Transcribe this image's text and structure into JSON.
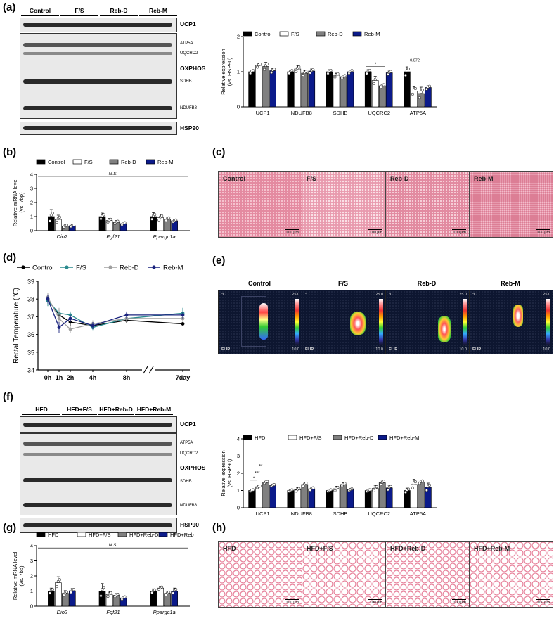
{
  "panel_labels": {
    "a": "(a)",
    "b": "(b)",
    "c": "(c)",
    "d": "(d)",
    "e": "(e)",
    "f": "(f)",
    "g": "(g)",
    "h": "(h)"
  },
  "blot_a": {
    "groups": [
      "Control",
      "F/S",
      "Reb-D",
      "Reb-M"
    ],
    "rows": {
      "ucp1": "UCP1",
      "oxphos": "OXPHOS",
      "hsp90": "HSP90"
    },
    "bands": {
      "atp5a": "ATP5A",
      "uqcrc2": "UQCRC2",
      "sdhb": "SDHB",
      "ndufb8": "NDUFB8"
    }
  },
  "blot_f": {
    "groups": [
      "HFD",
      "HFD+F/S",
      "HFD+Reb-D",
      "HFD+Reb-M"
    ],
    "rows": {
      "ucp1": "UCP1",
      "oxphos": "OXPHOS",
      "hsp90": "HSP90"
    },
    "bands": {
      "atp5a": "ATP5A",
      "uqcrc2": "UQCRC2",
      "sdhb": "SDHB",
      "ndufb8": "NDUFB8"
    }
  },
  "histo_c": {
    "labels": [
      "Control",
      "F/S",
      "Reb-D",
      "Reb-M"
    ],
    "scale": "100 μm"
  },
  "histo_h": {
    "labels": [
      "HFD",
      "HFD+F/S",
      "HFD+Reb-D",
      "HFD+Reb-M"
    ],
    "scale": "100 μm"
  },
  "thermal_e": {
    "labels": [
      "Control",
      "F/S",
      "Reb-D",
      "Reb-M"
    ],
    "unit": "°C",
    "max": "25.0",
    "min": "10.0",
    "brand": "FLIR"
  },
  "chart_data": [
    {
      "id": "a_bar",
      "type": "bar",
      "title": "",
      "ylabel": "Relative expression\n(vs. HSP90)",
      "ylim": [
        0,
        2
      ],
      "yticks": [
        "0",
        "1",
        "2"
      ],
      "categories": [
        "UCP1",
        "NDUFB8",
        "SDHB",
        "UQCRC2",
        "ATP5A"
      ],
      "series": [
        {
          "name": "Control",
          "color": "#000000",
          "values": [
            1.0,
            1.0,
            1.0,
            1.0,
            1.0
          ],
          "errors": [
            0.05,
            0.05,
            0.06,
            0.06,
            0.14
          ]
        },
        {
          "name": "F/S",
          "color": "#ffffff",
          "values": [
            1.18,
            1.08,
            0.9,
            0.75,
            0.45
          ],
          "errors": [
            0.06,
            0.1,
            0.06,
            0.12,
            0.12
          ]
        },
        {
          "name": "Reb-D",
          "color": "#808080",
          "values": [
            1.15,
            0.96,
            0.86,
            0.6,
            0.38
          ],
          "errors": [
            0.12,
            0.08,
            0.04,
            0.04,
            0.18
          ]
        },
        {
          "name": "Reb-M",
          "color": "#0b1a8a",
          "values": [
            1.03,
            1.02,
            1.0,
            0.97,
            0.55
          ],
          "errors": [
            0.06,
            0.06,
            0.05,
            0.05,
            0.05
          ]
        }
      ],
      "annotations": [
        "*",
        "0.072"
      ]
    },
    {
      "id": "b_bar",
      "type": "bar",
      "title": "",
      "ylabel": "Relative mRNA level\n(vs. 7bp)",
      "ylim": [
        0,
        4
      ],
      "yticks": [
        "0",
        "1",
        "2",
        "3",
        "4"
      ],
      "categories": [
        "Dio2",
        "Fgf21",
        "Ppargc1a"
      ],
      "series": [
        {
          "name": "Control",
          "color": "#000000",
          "values": [
            1.0,
            1.0,
            1.0
          ],
          "errors": [
            0.5,
            0.25,
            0.28
          ]
        },
        {
          "name": "F/S",
          "color": "#ffffff",
          "values": [
            0.8,
            0.72,
            0.92
          ],
          "errors": [
            0.3,
            0.15,
            0.25
          ]
        },
        {
          "name": "Reb-D",
          "color": "#808080",
          "values": [
            0.33,
            0.6,
            0.83
          ],
          "errors": [
            0.08,
            0.12,
            0.15
          ]
        },
        {
          "name": "Reb-M",
          "color": "#0b1a8a",
          "values": [
            0.35,
            0.5,
            0.7
          ],
          "errors": [
            0.08,
            0.12,
            0.1
          ]
        }
      ],
      "annotations": [
        "N.S."
      ]
    },
    {
      "id": "d_line",
      "type": "line",
      "title": "",
      "ylabel": "Rectal Temperature (℃)",
      "ylim": [
        34,
        39
      ],
      "yticks": [
        "34",
        "35",
        "36",
        "37",
        "38",
        "39"
      ],
      "xticks": [
        "0h",
        "1h",
        "2h",
        "4h",
        "8h",
        "7day"
      ],
      "series": [
        {
          "name": "Control",
          "color": "#000000",
          "values": [
            38.0,
            37.1,
            36.7,
            36.5,
            36.8,
            36.6
          ],
          "errors": [
            0.2,
            0.2,
            0.2,
            0.15,
            0.15,
            0.1
          ]
        },
        {
          "name": "F/S",
          "color": "#2b8a8e",
          "values": [
            37.9,
            37.2,
            37.1,
            36.4,
            36.9,
            37.2
          ],
          "errors": [
            0.3,
            0.2,
            0.2,
            0.15,
            0.15,
            0.3
          ]
        },
        {
          "name": "Reb-D",
          "color": "#a0a0a0",
          "values": [
            38.1,
            36.9,
            36.3,
            36.6,
            36.9,
            36.9
          ],
          "errors": [
            0.25,
            0.6,
            0.2,
            0.2,
            0.2,
            0.2
          ]
        },
        {
          "name": "Reb-M",
          "color": "#1a237e",
          "values": [
            38.0,
            36.4,
            36.9,
            36.5,
            37.1,
            37.1
          ],
          "errors": [
            0.25,
            0.3,
            0.2,
            0.2,
            0.2,
            0.2
          ]
        }
      ]
    },
    {
      "id": "f_bar",
      "type": "bar",
      "title": "",
      "ylabel": "Relative expression\n(vs. HSP90)",
      "ylim": [
        0,
        4
      ],
      "yticks": [
        "0",
        "1",
        "2",
        "3",
        "4"
      ],
      "categories": [
        "UCP1",
        "NDUFB8",
        "SDHB",
        "UQCRC2",
        "ATP5A"
      ],
      "series": [
        {
          "name": "HFD",
          "color": "#000000",
          "values": [
            1.0,
            1.0,
            1.0,
            1.0,
            1.0
          ],
          "errors": [
            0.06,
            0.06,
            0.06,
            0.06,
            0.14
          ]
        },
        {
          "name": "HFD+F/S",
          "color": "#ffffff",
          "values": [
            1.22,
            1.05,
            1.1,
            1.12,
            1.35
          ],
          "errors": [
            0.06,
            0.12,
            0.15,
            0.18,
            0.3
          ]
        },
        {
          "name": "HFD+Reb-D",
          "color": "#808080",
          "values": [
            1.48,
            1.35,
            1.35,
            1.45,
            1.5
          ],
          "errors": [
            0.06,
            0.14,
            0.1,
            0.15,
            0.1
          ]
        },
        {
          "name": "HFD+Reb-M",
          "color": "#0b1a8a",
          "values": [
            1.3,
            1.1,
            1.05,
            1.15,
            1.18
          ],
          "errors": [
            0.06,
            0.1,
            0.06,
            0.15,
            0.25
          ]
        }
      ],
      "annotations": [
        "**",
        "***",
        "*"
      ]
    },
    {
      "id": "g_bar",
      "type": "bar",
      "title": "",
      "ylabel": "Relative mRNA level\n(vs. 7bp)",
      "ylim": [
        0,
        4
      ],
      "yticks": [
        "0",
        "1",
        "2",
        "3",
        "4"
      ],
      "categories": [
        "Dio2",
        "Fgf21",
        "Ppargc1a"
      ],
      "series": [
        {
          "name": "HFD",
          "color": "#000000",
          "values": [
            1.0,
            1.0,
            1.0
          ],
          "errors": [
            0.2,
            0.5,
            0.15
          ]
        },
        {
          "name": "HFD+F/S",
          "color": "#ffffff",
          "values": [
            1.55,
            0.78,
            1.2
          ],
          "errors": [
            0.4,
            0.2,
            0.12
          ]
        },
        {
          "name": "HFD+Reb-D",
          "color": "#808080",
          "values": [
            0.85,
            0.72,
            0.85
          ],
          "errors": [
            0.18,
            0.12,
            0.15
          ]
        },
        {
          "name": "HFD+Reb-M",
          "color": "#0b1a8a",
          "values": [
            1.02,
            0.55,
            1.0
          ],
          "errors": [
            0.15,
            0.12,
            0.2
          ]
        }
      ],
      "annotations": [
        "N.S."
      ]
    }
  ]
}
